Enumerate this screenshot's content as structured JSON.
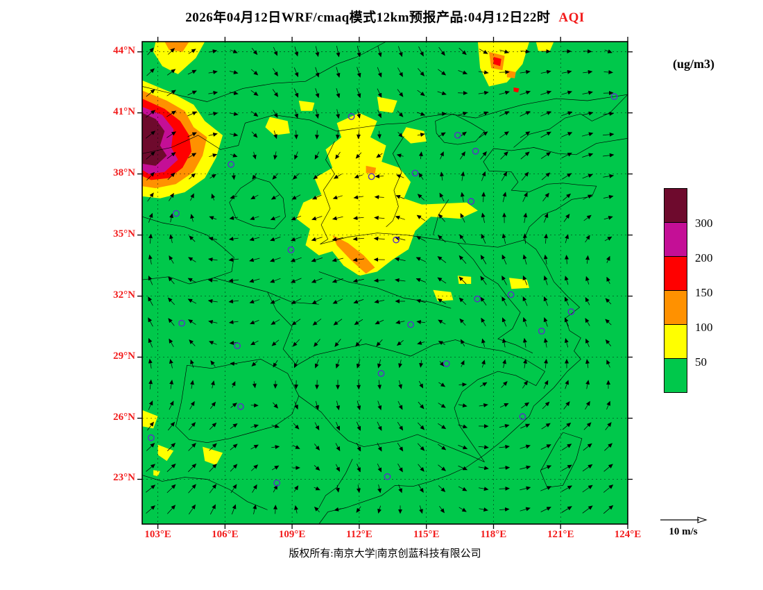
{
  "header": {
    "title": "2026年04月12日WRF/cmaq模式12km预报产品:04月12日22时",
    "title_highlight": "AQI"
  },
  "units_label": "(ug/m3)",
  "wind_legend_label": "10 m/s",
  "footer": {
    "copyright": "版权所有:南京大学|南京创蓝科技有限公司"
  },
  "colorbar": {
    "segments_bottom_to_top": [
      "#00C84B",
      "#FFFF00",
      "#FF9100",
      "#FF0000",
      "#C40F96",
      "#6E0A2D"
    ],
    "boundary_labels_bottom_to_top": [
      "50",
      "100",
      "150",
      "200",
      "300"
    ]
  },
  "axes": {
    "lat_ticks": [
      {
        "value": 44,
        "label": "44°N"
      },
      {
        "value": 41,
        "label": "41°N"
      },
      {
        "value": 38,
        "label": "38°N"
      },
      {
        "value": 35,
        "label": "35°N"
      },
      {
        "value": 32,
        "label": "32°N"
      },
      {
        "value": 29,
        "label": "29°N"
      },
      {
        "value": 26,
        "label": "26°N"
      },
      {
        "value": 23,
        "label": "23°N"
      }
    ],
    "lon_ticks": [
      {
        "value": 103,
        "label": "103°E"
      },
      {
        "value": 106,
        "label": "106°E"
      },
      {
        "value": 109,
        "label": "109°E"
      },
      {
        "value": 112,
        "label": "112°E"
      },
      {
        "value": 115,
        "label": "115°E"
      },
      {
        "value": 118,
        "label": "118°E"
      },
      {
        "value": 121,
        "label": "121°E"
      },
      {
        "value": 124,
        "label": "124°E"
      }
    ]
  },
  "map": {
    "extent": {
      "lon_min": 102.3,
      "lon_max": 124.0,
      "lat_min": 20.8,
      "lat_max": 44.5
    },
    "level_colors": {
      "green": "#00C84B",
      "yellow": "#FFFF00",
      "orange": "#FF9100",
      "red": "#FF0000",
      "magenta": "#C40F96",
      "maroon": "#6E0A2D"
    },
    "marker_color": "#5A2FC8",
    "aqi_regions": [
      {
        "level": "yellow",
        "points": [
          [
            102.3,
            42.6
          ],
          [
            103.6,
            42.0
          ],
          [
            104.6,
            41.4
          ],
          [
            105.1,
            40.6
          ],
          [
            105.9,
            39.9
          ],
          [
            105.6,
            38.8
          ],
          [
            105.1,
            37.8
          ],
          [
            104.2,
            37.1
          ],
          [
            103.1,
            36.8
          ],
          [
            102.3,
            36.9
          ]
        ]
      },
      {
        "level": "orange",
        "points": [
          [
            102.3,
            42.1
          ],
          [
            103.4,
            41.6
          ],
          [
            104.2,
            41.1
          ],
          [
            104.6,
            40.3
          ],
          [
            105.2,
            39.8
          ],
          [
            105.0,
            38.9
          ],
          [
            104.6,
            38.1
          ],
          [
            103.8,
            37.5
          ],
          [
            102.9,
            37.3
          ],
          [
            102.3,
            37.4
          ]
        ]
      },
      {
        "level": "red",
        "points": [
          [
            102.3,
            41.7
          ],
          [
            103.3,
            41.2
          ],
          [
            104.0,
            40.6
          ],
          [
            104.4,
            39.9
          ],
          [
            104.5,
            39.1
          ],
          [
            104.1,
            38.3
          ],
          [
            103.5,
            37.8
          ],
          [
            102.7,
            37.7
          ],
          [
            102.3,
            37.9
          ]
        ]
      },
      {
        "level": "magenta",
        "points": [
          [
            102.3,
            41.3
          ],
          [
            103.2,
            40.9
          ],
          [
            103.7,
            40.2
          ],
          [
            103.6,
            39.3
          ],
          [
            103.9,
            38.7
          ],
          [
            103.3,
            38.1
          ],
          [
            102.6,
            38.0
          ],
          [
            102.3,
            38.2
          ]
        ]
      },
      {
        "level": "maroon",
        "points": [
          [
            102.3,
            41.0
          ],
          [
            102.9,
            40.7
          ],
          [
            103.3,
            40.1
          ],
          [
            103.1,
            39.4
          ],
          [
            103.4,
            38.9
          ],
          [
            102.9,
            38.4
          ],
          [
            102.3,
            38.5
          ]
        ]
      },
      {
        "level": "yellow",
        "points": [
          [
            102.9,
            44.5
          ],
          [
            105.1,
            44.5
          ],
          [
            104.7,
            43.7
          ],
          [
            103.9,
            42.9
          ],
          [
            103.2,
            43.3
          ],
          [
            102.8,
            44.0
          ]
        ]
      },
      {
        "level": "orange",
        "points": [
          [
            103.3,
            44.5
          ],
          [
            104.4,
            44.5
          ],
          [
            104.1,
            44.0
          ],
          [
            103.5,
            44.1
          ]
        ]
      },
      {
        "level": "yellow",
        "points": [
          [
            107.8,
            40.3
          ],
          [
            108.0,
            40.8
          ],
          [
            108.8,
            40.6
          ],
          [
            108.9,
            40.0
          ],
          [
            108.2,
            39.9
          ]
        ]
      },
      {
        "level": "yellow",
        "points": [
          [
            109.3,
            41.6
          ],
          [
            110.0,
            41.5
          ],
          [
            109.9,
            41.1
          ],
          [
            109.4,
            41.1
          ]
        ]
      },
      {
        "level": "yellow",
        "points": [
          [
            112.0,
            41.0
          ],
          [
            112.8,
            40.6
          ],
          [
            112.5,
            39.8
          ],
          [
            113.2,
            39.4
          ],
          [
            113.0,
            38.6
          ],
          [
            113.8,
            38.3
          ],
          [
            114.3,
            37.6
          ],
          [
            114.0,
            36.8
          ],
          [
            114.8,
            36.5
          ],
          [
            116.8,
            36.6
          ],
          [
            117.3,
            36.2
          ],
          [
            116.5,
            35.8
          ],
          [
            115.2,
            35.9
          ],
          [
            114.5,
            35.2
          ],
          [
            114.2,
            34.3
          ],
          [
            113.5,
            33.8
          ],
          [
            112.8,
            33.2
          ],
          [
            112.0,
            33.0
          ],
          [
            111.3,
            33.5
          ],
          [
            110.8,
            34.2
          ],
          [
            110.2,
            34.0
          ],
          [
            109.6,
            34.5
          ],
          [
            109.8,
            35.3
          ],
          [
            109.2,
            35.8
          ],
          [
            109.5,
            36.6
          ],
          [
            110.3,
            37.0
          ],
          [
            110.0,
            37.8
          ],
          [
            110.8,
            38.3
          ],
          [
            110.5,
            39.2
          ],
          [
            111.2,
            39.8
          ],
          [
            111.0,
            40.5
          ],
          [
            111.6,
            40.8
          ]
        ]
      },
      {
        "level": "orange",
        "points": [
          [
            110.8,
            35.0
          ],
          [
            111.5,
            34.6
          ],
          [
            112.2,
            34.0
          ],
          [
            112.7,
            33.4
          ],
          [
            112.3,
            33.1
          ],
          [
            111.6,
            33.8
          ],
          [
            111.0,
            34.5
          ]
        ]
      },
      {
        "level": "orange",
        "points": [
          [
            112.3,
            38.4
          ],
          [
            112.75,
            38.3
          ],
          [
            112.7,
            38.0
          ],
          [
            112.3,
            38.05
          ]
        ]
      },
      {
        "level": "yellow",
        "points": [
          [
            112.8,
            41.8
          ],
          [
            113.7,
            41.6
          ],
          [
            113.5,
            41.0
          ],
          [
            112.9,
            41.1
          ]
        ]
      },
      {
        "level": "yellow",
        "points": [
          [
            113.9,
            39.9
          ],
          [
            114.1,
            40.3
          ],
          [
            114.9,
            40.1
          ],
          [
            115.0,
            39.6
          ],
          [
            114.3,
            39.5
          ]
        ]
      },
      {
        "level": "yellow",
        "points": [
          [
            117.3,
            44.5
          ],
          [
            119.6,
            44.5
          ],
          [
            119.3,
            43.4
          ],
          [
            118.6,
            42.5
          ],
          [
            117.8,
            42.3
          ],
          [
            117.4,
            43.2
          ]
        ]
      },
      {
        "level": "orange",
        "points": [
          [
            117.8,
            44.0
          ],
          [
            118.5,
            43.8
          ],
          [
            118.4,
            43.1
          ],
          [
            117.9,
            43.2
          ]
        ]
      },
      {
        "level": "red",
        "points": [
          [
            118.0,
            43.75
          ],
          [
            118.35,
            43.65
          ],
          [
            118.3,
            43.3
          ],
          [
            118.0,
            43.4
          ]
        ]
      },
      {
        "level": "orange",
        "points": [
          [
            118.6,
            43.1
          ],
          [
            119.0,
            43.0
          ],
          [
            118.95,
            42.7
          ],
          [
            118.6,
            42.75
          ]
        ]
      },
      {
        "level": "red",
        "points": [
          [
            118.9,
            42.25
          ],
          [
            119.15,
            42.2
          ],
          [
            119.1,
            42.0
          ],
          [
            118.9,
            42.05
          ]
        ]
      },
      {
        "level": "yellow",
        "points": [
          [
            119.9,
            44.5
          ],
          [
            120.7,
            44.5
          ],
          [
            120.5,
            44.0
          ],
          [
            120.0,
            44.05
          ]
        ]
      },
      {
        "level": "yellow",
        "points": [
          [
            115.3,
            32.3
          ],
          [
            116.1,
            32.2
          ],
          [
            116.2,
            31.8
          ],
          [
            115.5,
            31.75
          ]
        ]
      },
      {
        "level": "yellow",
        "points": [
          [
            116.4,
            33.0
          ],
          [
            117.0,
            32.95
          ],
          [
            117.0,
            32.6
          ],
          [
            116.45,
            32.6
          ]
        ]
      },
      {
        "level": "yellow",
        "points": [
          [
            118.7,
            32.9
          ],
          [
            119.5,
            32.8
          ],
          [
            119.6,
            32.4
          ],
          [
            118.8,
            32.35
          ]
        ]
      },
      {
        "level": "yellow",
        "points": [
          [
            102.3,
            26.4
          ],
          [
            103.0,
            26.1
          ],
          [
            102.8,
            25.5
          ],
          [
            102.3,
            25.6
          ]
        ]
      },
      {
        "level": "yellow",
        "points": [
          [
            103.0,
            24.7
          ],
          [
            103.7,
            24.4
          ],
          [
            103.4,
            23.9
          ],
          [
            103.0,
            24.2
          ]
        ]
      },
      {
        "level": "yellow",
        "points": [
          [
            105.0,
            24.6
          ],
          [
            105.9,
            24.3
          ],
          [
            105.6,
            23.7
          ],
          [
            105.1,
            23.9
          ]
        ]
      },
      {
        "level": "yellow",
        "points": [
          [
            102.8,
            23.45
          ],
          [
            103.1,
            23.4
          ],
          [
            103.0,
            23.15
          ],
          [
            102.8,
            23.2
          ]
        ]
      }
    ],
    "city_markers": [
      [
        116.4,
        39.9
      ],
      [
        117.2,
        39.12
      ],
      [
        114.5,
        38.04
      ],
      [
        112.55,
        37.87
      ],
      [
        111.65,
        40.82
      ],
      [
        123.4,
        41.8
      ],
      [
        117.0,
        36.65
      ],
      [
        113.65,
        34.76
      ],
      [
        108.95,
        34.27
      ],
      [
        103.82,
        36.06
      ],
      [
        106.27,
        38.47
      ],
      [
        104.07,
        30.67
      ],
      [
        106.55,
        29.56
      ],
      [
        114.3,
        30.6
      ],
      [
        112.98,
        28.2
      ],
      [
        115.9,
        28.68
      ],
      [
        117.28,
        31.86
      ],
      [
        118.78,
        32.07
      ],
      [
        121.47,
        31.23
      ],
      [
        120.15,
        30.28
      ],
      [
        119.3,
        26.08
      ],
      [
        113.26,
        23.13
      ],
      [
        108.32,
        22.82
      ],
      [
        106.7,
        26.57
      ],
      [
        102.7,
        25.04
      ]
    ]
  }
}
